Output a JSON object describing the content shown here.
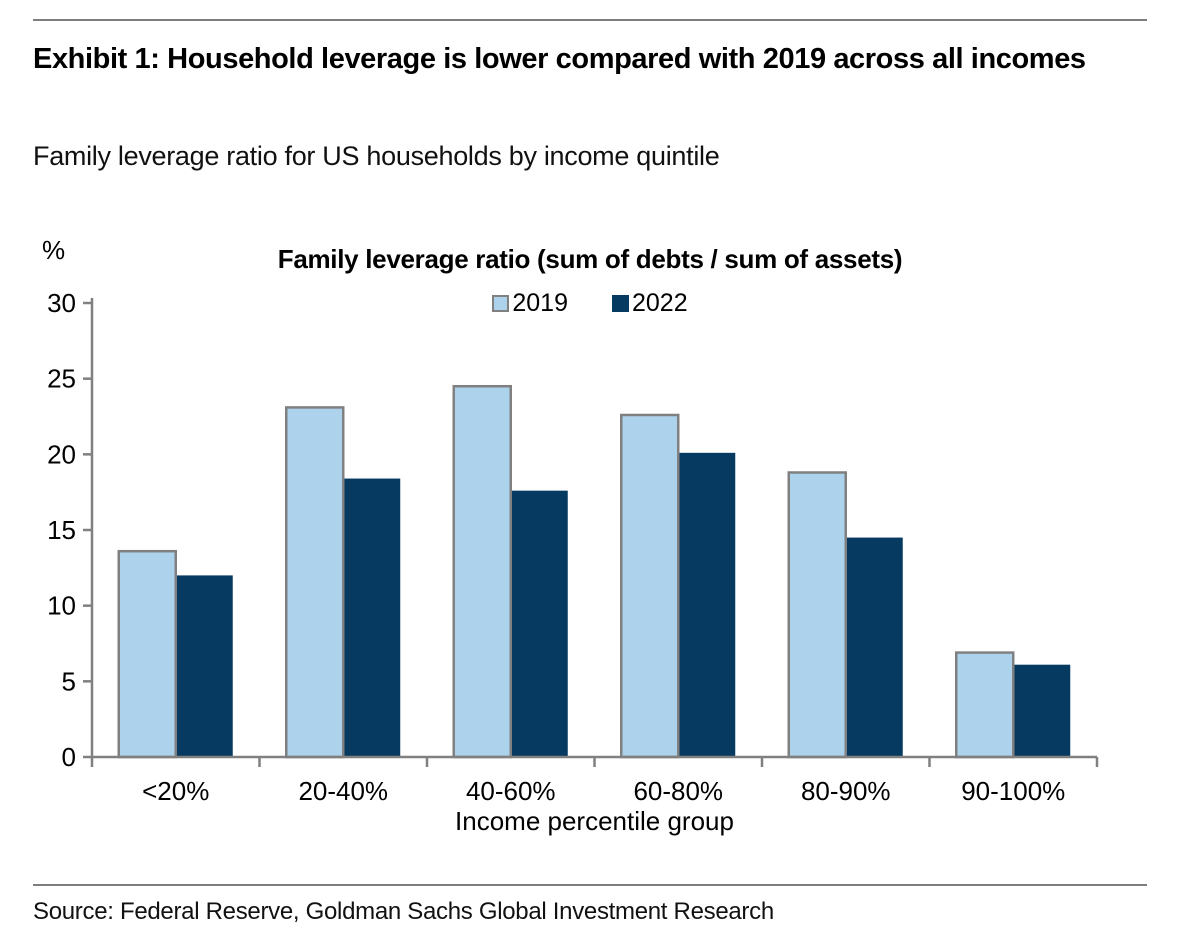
{
  "header": {
    "title": "Exhibit 1: Household leverage is lower compared with 2019 across all incomes",
    "subtitle": "Family leverage ratio for US households by income quintile"
  },
  "chart_data": {
    "type": "bar",
    "title": "Family leverage ratio (sum of debts / sum of assets)",
    "unit_label": "%",
    "categories": [
      "<20%",
      "20-40%",
      "40-60%",
      "60-80%",
      "80-90%",
      "90-100%"
    ],
    "series": [
      {
        "name": "2019",
        "color": "#ACD2EC",
        "border_color": "#808080",
        "values": [
          13.6,
          23.1,
          24.5,
          22.6,
          18.8,
          6.9
        ]
      },
      {
        "name": "2022",
        "color": "#063A60",
        "border_color": "#063A60",
        "values": [
          12.0,
          18.4,
          17.6,
          20.1,
          14.5,
          6.1
        ]
      }
    ],
    "xlabel": "Income percentile group",
    "ylabel": "%",
    "ylim": [
      0,
      30
    ],
    "yticks": [
      0,
      5,
      10,
      15,
      20,
      25,
      30
    ],
    "legend_position": "top-center",
    "grid": false,
    "axis_color": "#808080"
  },
  "footer": {
    "source": "Source: Federal Reserve, Goldman Sachs Global Investment Research"
  }
}
